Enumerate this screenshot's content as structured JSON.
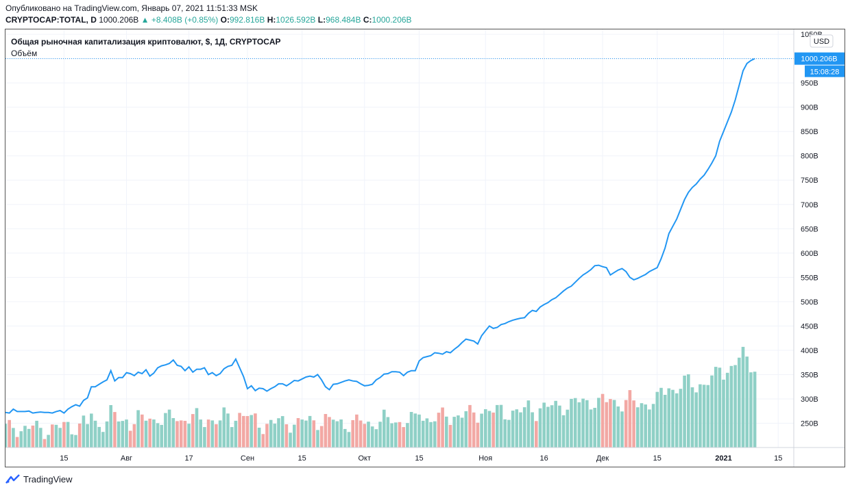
{
  "header": {
    "published": "Опубликовано на TradingView.com, Январь 07, 2021 11:51:33 MSK",
    "symbol": "CRYPTOCAP:TOTAL, D",
    "last": "1000.206B",
    "change": "▲ +8.408B (+0.85%)",
    "o_label": "O:",
    "o_val": "992.816B",
    "h_label": "H:",
    "h_val": "1026.592B",
    "l_label": "L:",
    "l_val": "968.484B",
    "c_label": "C:",
    "c_val": "1000.206B"
  },
  "legend": {
    "title": "Общая рыночная капитализация криптовалют, $, 1Д, CRYPTOCAP",
    "volume": "Объём"
  },
  "scale": {
    "currency": "USD",
    "last_label": "1000.206B",
    "countdown": "15:08:28"
  },
  "footer": {
    "brand": "TradingView",
    "logo_icon": "tradingview-logo-icon"
  },
  "colors": {
    "line": "#2196f3",
    "vol_up": "#8fd0c6",
    "vol_down": "#f2a8a4",
    "grid": "#f0f3fa"
  },
  "chart_data": {
    "type": "line",
    "title": "Общая рыночная капитализация криптовалют, $, 1Д, CRYPTOCAP",
    "ylim": [
      200,
      1060
    ],
    "y_ticks": [
      250,
      300,
      350,
      400,
      450,
      500,
      550,
      600,
      650,
      700,
      750,
      800,
      850,
      900,
      950,
      1000,
      1050
    ],
    "y_tick_labels": [
      "250B",
      "300B",
      "350B",
      "400B",
      "450B",
      "500B",
      "550B",
      "600B",
      "650B",
      "700B",
      "750B",
      "800B",
      "850B",
      "900B",
      "950B",
      "",
      "1050B"
    ],
    "x_ticks": [
      {
        "day": 15,
        "label": "15"
      },
      {
        "day": 31,
        "label": "Авг"
      },
      {
        "day": 47,
        "label": "17"
      },
      {
        "day": 62,
        "label": "Сен"
      },
      {
        "day": 76,
        "label": "15"
      },
      {
        "day": 92,
        "label": "Окт"
      },
      {
        "day": 106,
        "label": "15"
      },
      {
        "day": 123,
        "label": "Ноя"
      },
      {
        "day": 138,
        "label": "16"
      },
      {
        "day": 153,
        "label": "Дек"
      },
      {
        "day": 167,
        "label": "15"
      },
      {
        "day": 184,
        "label": "2021"
      },
      {
        "day": 198,
        "label": "15"
      }
    ],
    "x_range": [
      0,
      202
    ],
    "series": [
      {
        "values": [
          272,
          271,
          279,
          274,
          274,
          274,
          275,
          271,
          272,
          273,
          272,
          272,
          271,
          274,
          276,
          271,
          279,
          284,
          288,
          285,
          297,
          302,
          325,
          325,
          330,
          335,
          339,
          358,
          337,
          344,
          344,
          354,
          352,
          348,
          355,
          352,
          360,
          347,
          353,
          364,
          368,
          370,
          373,
          380,
          369,
          367,
          358,
          366,
          355,
          361,
          361,
          364,
          350,
          354,
          348,
          352,
          362,
          367,
          369,
          382,
          364,
          346,
          321,
          327,
          317,
          322,
          321,
          316,
          321,
          325,
          331,
          331,
          327,
          332,
          338,
          337,
          341,
          345,
          347,
          345,
          350,
          339,
          325,
          319,
          330,
          331,
          334,
          337,
          339,
          337,
          336,
          331,
          327,
          328,
          330,
          339,
          344,
          351,
          352,
          356,
          356,
          355,
          348,
          355,
          358,
          358,
          378,
          385,
          387,
          389,
          395,
          394,
          392,
          397,
          395,
          402,
          408,
          416,
          423,
          421,
          419,
          413,
          430,
          440,
          450,
          445,
          447,
          453,
          455,
          459,
          462,
          464,
          466,
          467,
          476,
          482,
          480,
          489,
          494,
          498,
          504,
          508,
          515,
          522,
          528,
          532,
          540,
          548,
          555,
          560,
          566,
          574,
          575,
          572,
          570,
          555,
          560,
          565,
          568,
          562,
          550,
          545,
          548,
          552,
          556,
          562,
          566,
          570,
          588,
          610,
          640,
          655,
          670,
          690,
          710,
          725,
          735,
          742,
          752,
          760,
          772,
          785,
          800,
          830,
          850,
          870,
          890,
          915,
          945,
          975,
          990,
          996,
          1000
        ]
      }
    ]
  }
}
